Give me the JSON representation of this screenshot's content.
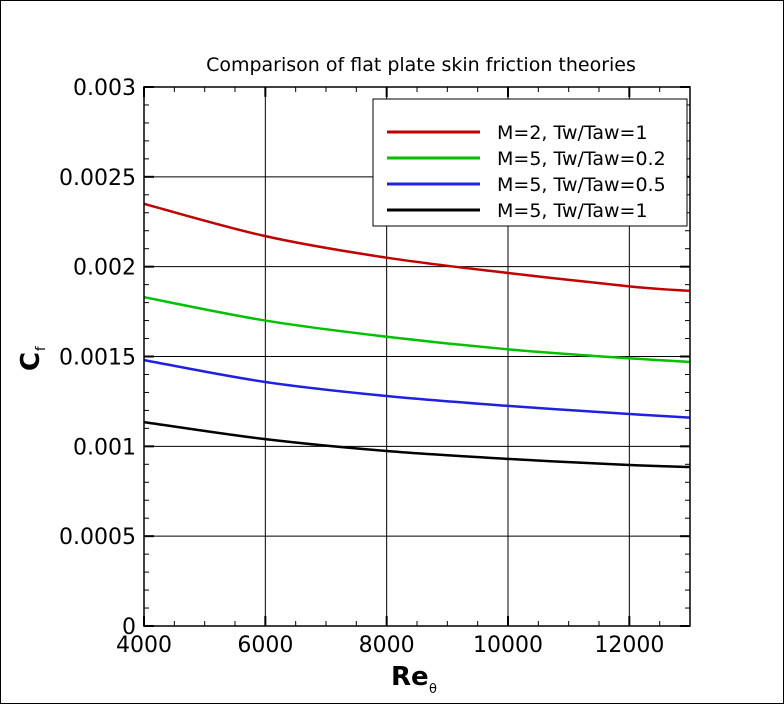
{
  "chart_data": {
    "type": "line",
    "title": "Comparison of flat plate skin friction theories",
    "xlabel": "Re",
    "xlabel_subscript": "θ",
    "ylabel": "C",
    "ylabel_subscript": "f",
    "xlim": [
      4000,
      13000
    ],
    "ylim": [
      0,
      0.003
    ],
    "xticks": [
      4000,
      6000,
      8000,
      10000,
      12000
    ],
    "xtick_labels": [
      "4000",
      "6000",
      "8000",
      "10000",
      "12000"
    ],
    "yticks": [
      0,
      0.0005,
      0.001,
      0.0015,
      0.002,
      0.0025,
      0.003
    ],
    "ytick_labels": [
      "0",
      "0.0005",
      "0.001",
      "0.0015",
      "0.002",
      "0.0025",
      "0.003"
    ],
    "grid": true,
    "legend_position": "top-right",
    "x": [
      4000,
      6000,
      8000,
      10000,
      12000,
      13000
    ],
    "series": [
      {
        "name": "M=2, Tw/Taw=1",
        "color": "#c00000",
        "values": [
          0.00235,
          0.00217,
          0.00205,
          0.001965,
          0.00189,
          0.001865
        ]
      },
      {
        "name": "M=5, Tw/Taw=0.2",
        "color": "#00c000",
        "values": [
          0.00183,
          0.0017,
          0.00161,
          0.00154,
          0.00149,
          0.00147
        ]
      },
      {
        "name": "M=5, Tw/Taw=0.5",
        "color": "#2020e0",
        "values": [
          0.00148,
          0.001358,
          0.00128,
          0.001225,
          0.00118,
          0.00116
        ]
      },
      {
        "name": "M=5, Tw/Taw=1",
        "color": "#000000",
        "values": [
          0.001135,
          0.00104,
          0.000974,
          0.00093,
          0.000896,
          0.000885
        ]
      }
    ]
  }
}
